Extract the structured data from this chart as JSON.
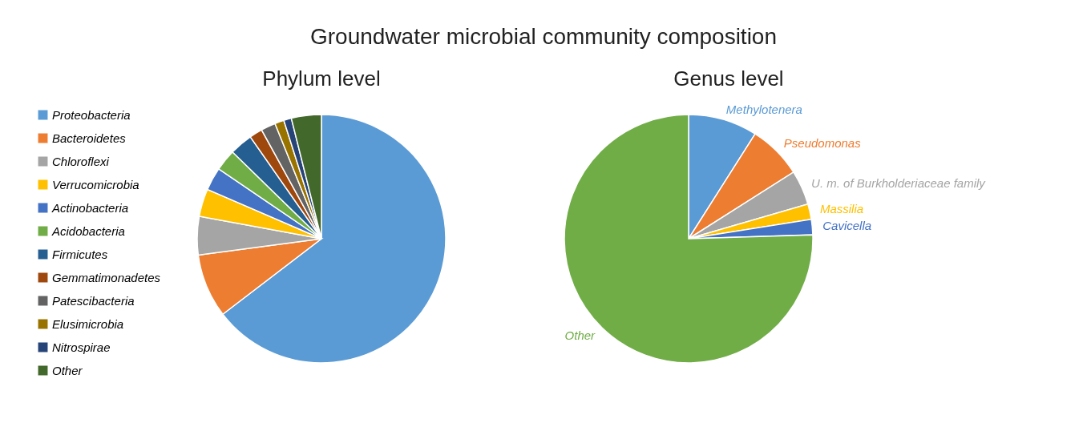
{
  "chart_data": [
    {
      "type": "other",
      "title": "Groundwater microbial community composition"
    },
    {
      "type": "pie",
      "title": "Phylum level",
      "legend": "left",
      "categories": [
        "Proteobacteria",
        "Bacteroidetes",
        "Chloroflexi",
        "Verrucomicrobia",
        "Actinobacteria",
        "Acidobacteria",
        "Firmicutes",
        "Gemmatimonadetes",
        "Patescibacteria",
        "Elusimicrobia",
        "Nitrospirae",
        "Other"
      ],
      "values": [
        64.6,
        8.3,
        5,
        3.6,
        3,
        2.8,
        3,
        1.7,
        1.9,
        1.2,
        1,
        3.9
      ],
      "colors": [
        "#5b9bd5",
        "#ed7d31",
        "#a5a5a5",
        "#ffc000",
        "#4472c4",
        "#70ad47",
        "#255e91",
        "#9e480e",
        "#636363",
        "#997300",
        "#264478",
        "#43682b"
      ]
    },
    {
      "type": "pie",
      "title": "Genus level",
      "legend": false,
      "categories": [
        "Methylotenera",
        "Pseudomonas",
        "U. m. of Burkholderiaceae family",
        "Massilia",
        "Cavicella",
        "Other"
      ],
      "values": [
        9,
        7,
        4.5,
        2,
        2,
        75.5
      ],
      "colors": [
        "#5b9bd5",
        "#ed7d31",
        "#a5a5a5",
        "#ffc000",
        "#4472c4",
        "#70ad47"
      ]
    }
  ]
}
